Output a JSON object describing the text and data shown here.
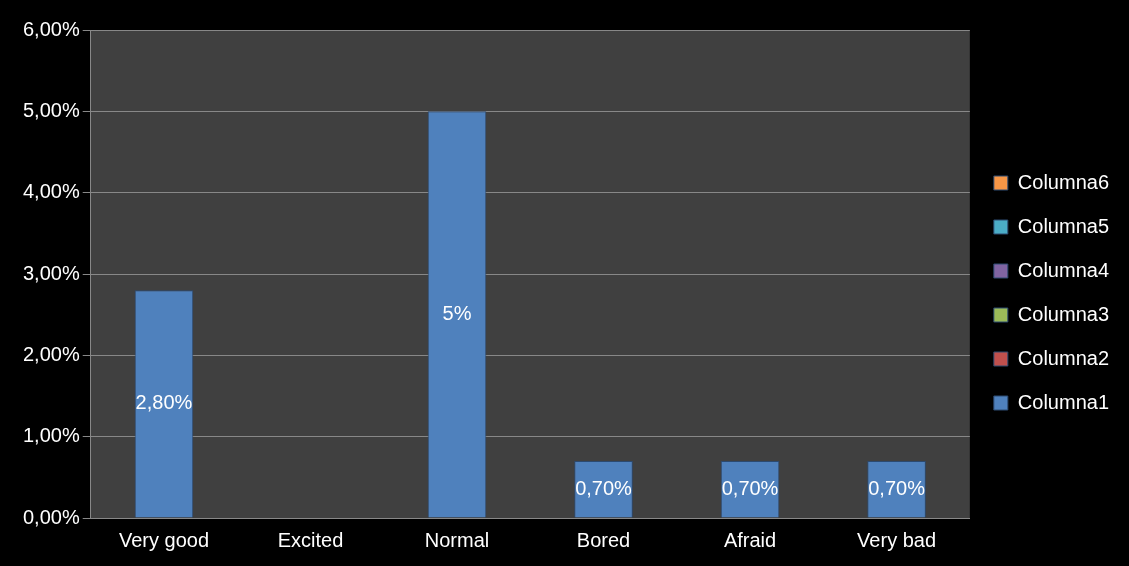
{
  "chart_data": {
    "type": "bar",
    "categories": [
      "Very good",
      "Excited",
      "Normal",
      "Bored",
      "Afraid",
      "Very bad"
    ],
    "series": [
      {
        "name": "Columna1",
        "color": "#4f81bd",
        "values": [
          2.8,
          null,
          5,
          0.7,
          0.7,
          0.7
        ],
        "value_labels": [
          "2,80%",
          null,
          "5%",
          "0,70%",
          "0,70%",
          "0,70%"
        ]
      },
      {
        "name": "Columna2",
        "color": "#c0504d",
        "values": [
          null,
          null,
          null,
          null,
          null,
          null
        ]
      },
      {
        "name": "Columna3",
        "color": "#9bbb59",
        "values": [
          null,
          null,
          null,
          null,
          null,
          null
        ]
      },
      {
        "name": "Columna4",
        "color": "#8064a2",
        "values": [
          null,
          null,
          null,
          null,
          null,
          null
        ]
      },
      {
        "name": "Columna5",
        "color": "#4bacc6",
        "values": [
          null,
          null,
          null,
          null,
          null,
          null
        ]
      },
      {
        "name": "Columna6",
        "color": "#f79646",
        "values": [
          null,
          null,
          null,
          null,
          null,
          null
        ]
      }
    ],
    "ylim": [
      0,
      6
    ],
    "yticks": [
      {
        "value": 0,
        "label": "0,00%"
      },
      {
        "value": 1,
        "label": "1,00%"
      },
      {
        "value": 2,
        "label": "2,00%"
      },
      {
        "value": 3,
        "label": "3,00%"
      },
      {
        "value": 4,
        "label": "4,00%"
      },
      {
        "value": 5,
        "label": "5,00%"
      },
      {
        "value": 6,
        "label": "6,00%"
      }
    ],
    "grid": "y",
    "legend": "right"
  }
}
